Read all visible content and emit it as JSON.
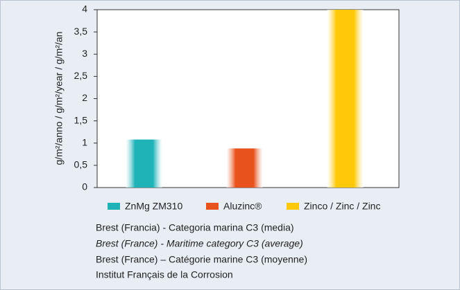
{
  "chart_data": {
    "type": "bar",
    "y_label": "g/m²/anno / g/m²/year / g/m²/an",
    "series": [
      {
        "name": "ZnMg ZM310",
        "color": "#1fb3b8",
        "values": [
          1.08
        ]
      },
      {
        "name": "Aluzinc®",
        "color": "#e8531d",
        "values": [
          0.88
        ]
      },
      {
        "name": "Zinco / Zinc / Zinc",
        "color": "#ffc90a",
        "values": [
          4.0
        ]
      }
    ],
    "ylim": [
      0,
      4
    ],
    "yticks": [
      0,
      {
        "value": 0.5,
        "label": "0,5"
      },
      1,
      {
        "value": 1.5,
        "label": "1,5"
      },
      2,
      {
        "value": 2.5,
        "label": "2,5"
      },
      3,
      {
        "value": 3.5,
        "label": "3,5"
      },
      4
    ],
    "notes": [
      "Brest (Francia) - Categoria marina C3 (media)",
      "Brest (France) - Maritime category C3 (average)",
      "Brest (France) – Catégorie marine C3 (moyenne)",
      "Institut Français de la Corrosion"
    ]
  }
}
